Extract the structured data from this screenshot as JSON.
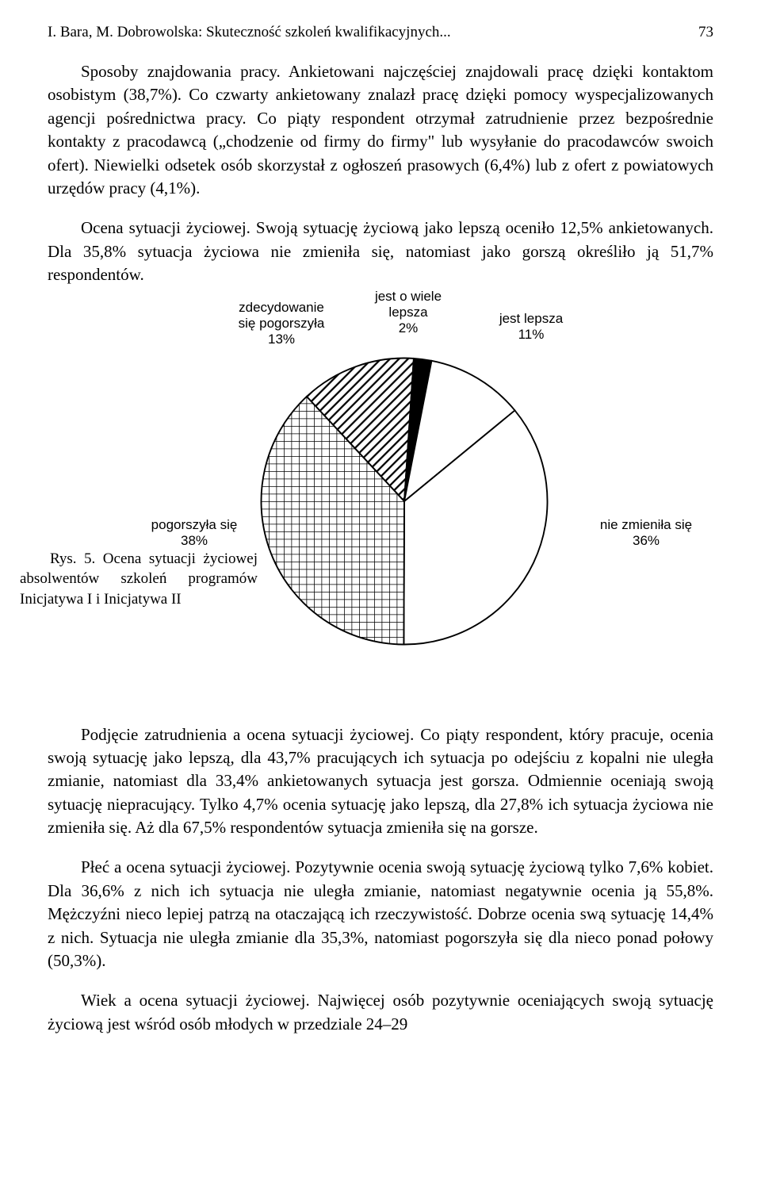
{
  "header": {
    "running_title": "I. Bara, M. Dobrowolska: Skuteczność szkoleń kwalifikacyjnych...",
    "page_number": "73"
  },
  "paragraphs": {
    "p1": "Sposoby znajdowania pracy. Ankietowani najczęściej znajdowali pracę dzięki kontaktom osobistym (38,7%). Co czwarty ankietowany znalazł pracę dzięki pomocy wyspecjalizowanych agencji pośrednictwa pracy. Co piąty respondent otrzymał zatrudnienie przez bezpośrednie kontakty z pracodawcą („chodzenie od firmy do firmy\" lub wysyłanie do pracodawców swoich ofert). Niewielki odsetek osób skorzystał z ogłoszeń prasowych (6,4%) lub z ofert z powiatowych urzędów pracy (4,1%).",
    "p2": "Ocena sytuacji życiowej. Swoją sytuację życiową jako lepszą oceniło 12,5% ankietowanych. Dla 35,8% sytuacja życiowa nie zmieniła się, natomiast jako gorszą określiło ją 51,7% respondentów.",
    "p3": "Podjęcie zatrudnienia a ocena sytuacji życiowej. Co piąty respondent, który pracuje, ocenia swoją sytuację jako lepszą, dla 43,7% pracujących ich sytuacja po odejściu z kopalni nie uległa zmianie, natomiast dla 33,4% ankietowanych sytuacja jest gorsza. Odmiennie oceniają swoją sytuację niepracujący. Tylko 4,7% ocenia sytuację jako lepszą, dla 27,8% ich sytuacja życiowa nie zmieniła się. Aż dla 67,5% respondentów sytuacja zmieniła się na gorsze.",
    "p4": "Płeć a ocena sytuacji życiowej. Pozytywnie ocenia swoją sytuację życiową tylko 7,6% kobiet. Dla 36,6% z nich ich sytuacja nie uległa zmianie, natomiast negatywnie ocenia ją 55,8%. Mężczyźni nieco lepiej patrzą na otaczającą ich rzeczywistość. Dobrze ocenia swą sytuację 14,4% z nich. Sytuacja nie uległa zmianie dla 35,3%, natomiast pogorszyła się dla nieco ponad połowy (50,3%).",
    "p5": "Wiek a ocena sytuacji życiowej. Najwięcej osób pozytywnie oceniających swoją sytuację życiową jest wśród osób młodych w przedziale 24–29"
  },
  "figure": {
    "caption": "Rys. 5. Ocena sytuacji życiowej absolwentów szkoleń programów Inicjatywa I i Inicjatywa II",
    "type": "pie",
    "slices": [
      {
        "label_line1": "zdecydowanie",
        "label_line2": "się pogorszyła",
        "pct_label": "13%",
        "value": 13,
        "fill": "pattern-diag"
      },
      {
        "label_line1": "jest o wiele",
        "label_line2": "lepsza",
        "pct_label": "2%",
        "value": 2,
        "fill": "#000000"
      },
      {
        "label_line1": "jest lepsza",
        "label_line2": "",
        "pct_label": "11%",
        "value": 11,
        "fill": "#ffffff"
      },
      {
        "label_line1": "nie zmieniła się",
        "label_line2": "",
        "pct_label": "36%",
        "value": 36,
        "fill": "#ffffff"
      },
      {
        "label_line1": "pogorszyła się",
        "label_line2": "",
        "pct_label": "38%",
        "value": 38,
        "fill": "pattern-grid"
      }
    ],
    "stroke_color": "#000000",
    "stroke_width": 1,
    "background_color": "#ffffff",
    "label_fontsize": 17,
    "label_font": "Arial",
    "start_angle_deg": -133
  }
}
